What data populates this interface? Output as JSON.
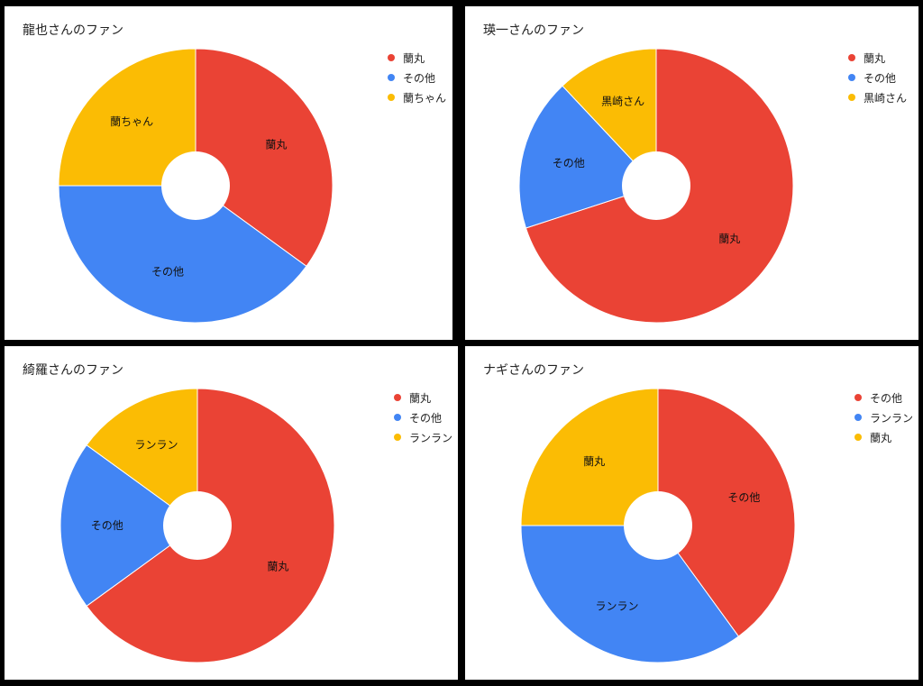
{
  "chart_data": [
    {
      "type": "pie",
      "title": "龍也さんのファン",
      "legend": "right",
      "slices": [
        {
          "label": "蘭丸",
          "value": 35,
          "color": "#EA4335"
        },
        {
          "label": "その他",
          "value": 40,
          "color": "#4285F4"
        },
        {
          "label": "蘭ちゃん",
          "value": 25,
          "color": "#FBBC04"
        }
      ]
    },
    {
      "type": "pie",
      "title": "瑛一さんのファン",
      "legend": "right",
      "slices": [
        {
          "label": "蘭丸",
          "value": 70,
          "color": "#EA4335"
        },
        {
          "label": "その他",
          "value": 18,
          "color": "#4285F4"
        },
        {
          "label": "黒崎さん",
          "value": 12,
          "color": "#FBBC04"
        }
      ]
    },
    {
      "type": "pie",
      "title": "綺羅さんのファン",
      "legend": "right",
      "slices": [
        {
          "label": "蘭丸",
          "value": 65,
          "color": "#EA4335"
        },
        {
          "label": "その他",
          "value": 20,
          "color": "#4285F4"
        },
        {
          "label": "ランラン",
          "value": 15,
          "color": "#FBBC04"
        }
      ]
    },
    {
      "type": "pie",
      "title": "ナギさんのファン",
      "legend": "right",
      "slices": [
        {
          "label": "その他",
          "value": 40,
          "color": "#EA4335"
        },
        {
          "label": "ランラン",
          "value": 35,
          "color": "#4285F4"
        },
        {
          "label": "蘭丸",
          "value": 25,
          "color": "#FBBC04"
        }
      ]
    }
  ]
}
